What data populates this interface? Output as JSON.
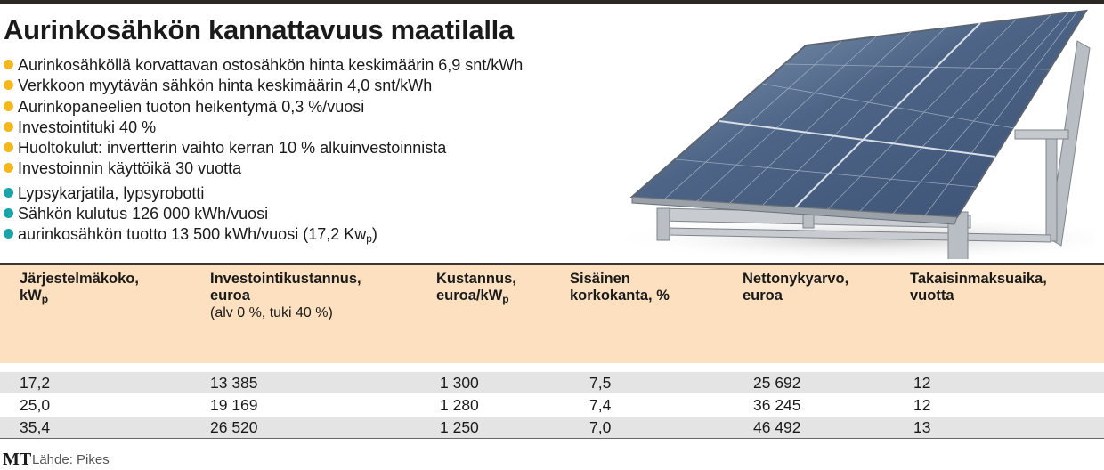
{
  "header": {
    "title": "Aurinkosähkön kannattavuus maatilalla"
  },
  "bullets": [
    {
      "text": "Aurinkosähköllä korvattavan ostosähkön hinta keskimäärin 6,9 snt/kWh",
      "color": "#f2b81c"
    },
    {
      "text": "Verkkoon myytävän sähkön hinta keskimäärin 4,0 snt/kWh",
      "color": "#f2b81c"
    },
    {
      "text": "Aurinkopaneelien tuoton heikentymä 0,3 %/vuosi",
      "color": "#f2b81c"
    },
    {
      "text": "Investointituki 40 %",
      "color": "#f2b81c"
    },
    {
      "text": "Huoltokulut: invertterin vaihto kerran 10 % alkuinvestoinnista",
      "color": "#f2b81c"
    },
    {
      "text": "Investoinnin käyttöikä 30 vuotta",
      "color": "#f2b81c"
    },
    {
      "text": "Lypsykarjatila, lypsyrobotti",
      "color": "#1aa3a8"
    },
    {
      "text": "Sähkön kulutus 126 000 kWh/vuosi",
      "color": "#1aa3a8"
    },
    {
      "text": "aurinkosähkön tuotto 13 500 kWh/vuosi (17,2 Kw",
      "sub": "p",
      "after": ")",
      "color": "#1aa3a8"
    }
  ],
  "table": {
    "columns": [
      {
        "label": "Järjestelmäkoko,",
        "label2": "kW",
        "sub": "p"
      },
      {
        "label": "Investointikustannus,",
        "label2": "euroa",
        "note": "(alv 0 %, tuki 40 %)"
      },
      {
        "label": "Kustannus,",
        "label2": "euroa/kW",
        "sub": "p"
      },
      {
        "label": "Sisäinen",
        "label2": "korkokanta, %"
      },
      {
        "label": "Nettonykyarvo,",
        "label2": "euroa"
      },
      {
        "label": "Takaisinmaksuaika,",
        "label2": "vuotta"
      }
    ],
    "rows": [
      [
        "17,2",
        "13 385",
        "1 300",
        "7,5",
        "25 692",
        "12"
      ],
      [
        "25,0",
        "19 169",
        "1 280",
        "7,4",
        "36 245",
        "12"
      ],
      [
        "35,4",
        "26 520",
        "1 250",
        "7,0",
        "46 492",
        "13"
      ]
    ]
  },
  "footer": {
    "logo": "MT",
    "source": "Lähde: Pikes"
  }
}
